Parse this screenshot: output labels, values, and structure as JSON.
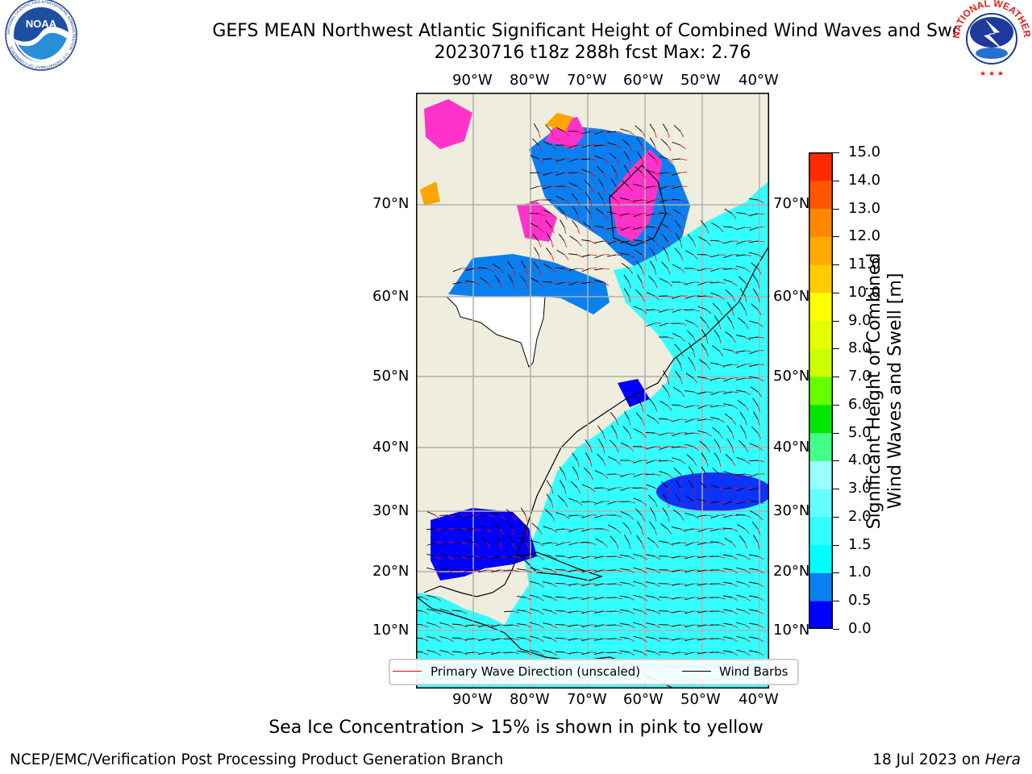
{
  "title": {
    "line1": "GEFS MEAN Northwest Atlantic Significant Height of Combined Wind Waves and Swell",
    "line2": "20230716 t18z 288h fcst   Max: 2.76"
  },
  "logos": {
    "noaa": {
      "text": "NOAA",
      "ring_text": "NATIONAL OCEANIC AND ATMOSPHERIC ADMINISTRATION · U.S. DEPARTMENT OF COMMERCE"
    },
    "nws": {
      "ring_text": "NATIONAL WEATHER SERVICE"
    }
  },
  "map": {
    "lon_labels": [
      "90°W",
      "80°W",
      "70°W",
      "60°W",
      "50°W",
      "40°W"
    ],
    "lat_labels": [
      "70°N",
      "60°N",
      "50°N",
      "40°N",
      "30°N",
      "20°N",
      "10°N"
    ],
    "colors": {
      "land": "#efeddd",
      "ocean_main": "#33ffff",
      "deep_blue": "#0000ff",
      "mid_blue": "#0a7ff0",
      "ice_pink": "#ff33cc",
      "ice_orange": "#ffa500",
      "grid": "#b0b0b0",
      "barb_black": "#000000",
      "arrow_red": "#ff0000"
    }
  },
  "legend": {
    "primary_wave": "Primary Wave Direction (unscaled)",
    "wind_barbs": "Wind Barbs"
  },
  "colorbar": {
    "label_line1": "Significant Height of Combined",
    "label_line2": "Wind Waves and Swell [m]",
    "ticks": [
      "0.0",
      "0.5",
      "1.0",
      "1.5",
      "2.0",
      "3.0",
      "4.0",
      "5.0",
      "6.0",
      "7.0",
      "8.0",
      "9.0",
      "10.0",
      "11.0",
      "12.0",
      "13.0",
      "14.0",
      "15.0"
    ],
    "colors": [
      "#0000ff",
      "#0a7ff0",
      "#00ffff",
      "#33ffff",
      "#66ffff",
      "#99ffff",
      "#44ff88",
      "#00e600",
      "#66ff00",
      "#ccff00",
      "#e6ff00",
      "#ffff00",
      "#ffcc00",
      "#ffaa00",
      "#ff8800",
      "#ff5500",
      "#ff2a00",
      "#ff0000"
    ]
  },
  "footer": {
    "caption": "Sea Ice Concentration > 15% is shown in pink to yellow",
    "left": "NCEP/EMC/Verification Post Processing Product Generation Branch",
    "right_prefix": "18 Jul 2023 on ",
    "right_host": "Hera"
  }
}
